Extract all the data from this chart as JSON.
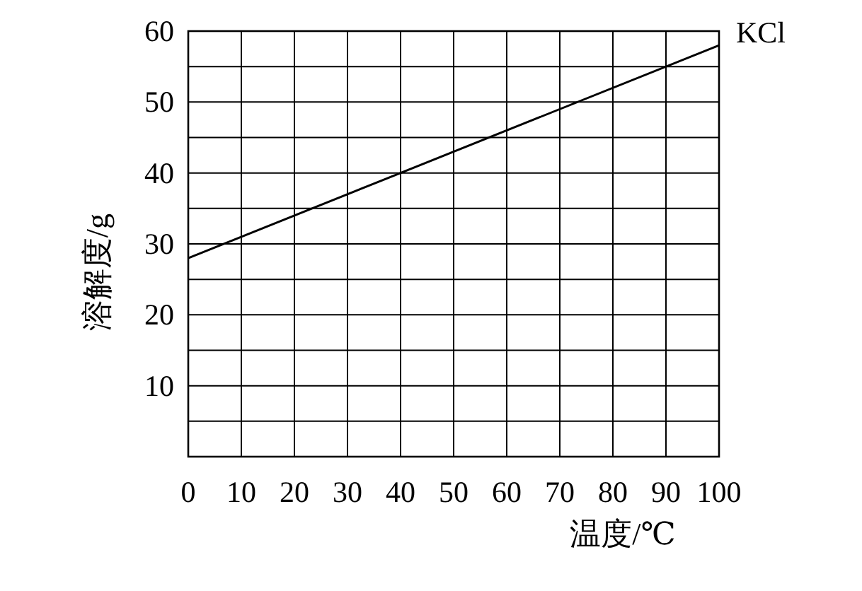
{
  "chart_data": {
    "type": "line",
    "xlabel": "温度/℃",
    "ylabel": "溶解度/g",
    "series": [
      {
        "name": "KCl",
        "color": "#000000",
        "x": [
          0,
          100
        ],
        "values": [
          28,
          58
        ]
      }
    ],
    "xlim": [
      0,
      100
    ],
    "xticks": [
      0,
      10,
      20,
      30,
      40,
      50,
      60,
      70,
      80,
      90,
      100
    ],
    "ylim": [
      0,
      60
    ],
    "yticks": [
      {
        "value": 0,
        "label": null
      },
      {
        "value": 5,
        "label": null
      },
      10,
      {
        "value": 15,
        "label": null
      },
      20,
      {
        "value": 25,
        "label": null
      },
      30,
      {
        "value": 35,
        "label": null
      },
      40,
      {
        "value": 45,
        "label": null
      },
      50,
      {
        "value": 55,
        "label": null
      },
      60
    ],
    "grid": true,
    "marker": "none",
    "line_style": "solid"
  }
}
